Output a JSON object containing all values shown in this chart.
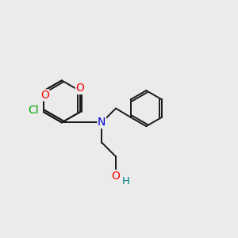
{
  "background_color": "#ebebeb",
  "bond_color": "#1a1a1a",
  "bond_width": 1.4,
  "atom_colors": {
    "O": "#ff0000",
    "N": "#0000cc",
    "Cl": "#00aa00",
    "OH_H": "#008080"
  },
  "font_size": 8.5,
  "fig_size": [
    3.0,
    3.0
  ],
  "dpi": 100,
  "xlim": [
    0,
    10
  ],
  "ylim": [
    0,
    10
  ]
}
